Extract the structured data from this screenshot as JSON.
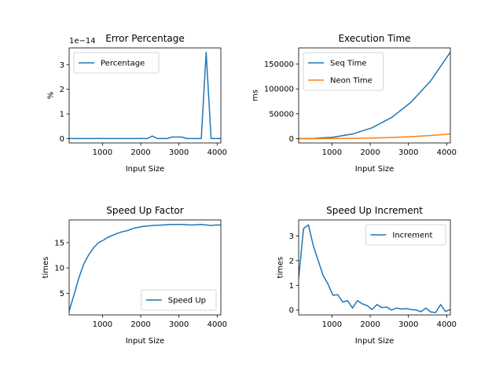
{
  "chart_data": [
    {
      "id": "error",
      "type": "line",
      "title": "Error Percentage",
      "xlabel": "Input Size",
      "ylabel": "%",
      "y_offset_text": "1e−14",
      "xlim": [
        128,
        4096
      ],
      "ylim": [
        -0.18,
        3.68
      ],
      "xticks": [
        1000,
        2000,
        3000,
        4000
      ],
      "yticks": [
        0,
        1,
        2,
        3
      ],
      "legend_position": "upper left",
      "series": [
        {
          "name": "Percentage",
          "color": "#1f77b4",
          "x": [
            128,
            2176,
            2304,
            2432,
            2688,
            2816,
            3072,
            3200,
            3584,
            3712,
            3840,
            4096
          ],
          "y": [
            0,
            0,
            0.1,
            0,
            0,
            0.06,
            0.06,
            0,
            0,
            3.5,
            0,
            0
          ]
        }
      ]
    },
    {
      "id": "exec",
      "type": "line",
      "title": "Execution Time",
      "xlabel": "Input Size",
      "ylabel": "ms",
      "xlim": [
        128,
        4096
      ],
      "ylim": [
        -8700,
        182500
      ],
      "xticks": [
        1000,
        2000,
        3000,
        4000
      ],
      "yticks": [
        0,
        50000,
        100000,
        150000
      ],
      "legend_position": "upper left",
      "series": [
        {
          "name": "Seq Time",
          "color": "#1f77b4",
          "x": [
            128,
            512,
            1024,
            1536,
            2048,
            2560,
            3072,
            3584,
            4096
          ],
          "y": [
            5,
            340,
            2700,
            9200,
            21800,
            42500,
            73500,
            116500,
            174000
          ]
        },
        {
          "name": "Neon Time",
          "color": "#ff7f0e",
          "x": [
            128,
            512,
            1024,
            1536,
            2048,
            2560,
            3072,
            3584,
            4096
          ],
          "y": [
            3,
            60,
            200,
            550,
            1200,
            2300,
            4000,
            6300,
            9400
          ]
        }
      ]
    },
    {
      "id": "speedup",
      "type": "line",
      "title": "Speed Up Factor",
      "xlabel": "Input Size",
      "ylabel": "times",
      "xlim": [
        128,
        4096
      ],
      "ylim": [
        0.7,
        19.5
      ],
      "xticks": [
        1000,
        2000,
        3000,
        4000
      ],
      "yticks": [
        5,
        10,
        15
      ],
      "legend_position": "lower right",
      "series": [
        {
          "name": "Speed Up",
          "color": "#1f77b4",
          "x": [
            128,
            256,
            384,
            512,
            640,
            768,
            896,
            1024,
            1152,
            1280,
            1408,
            1536,
            1664,
            1792,
            1920,
            2048,
            2304,
            2560,
            2816,
            3072,
            3328,
            3584,
            3840,
            3968,
            4096
          ],
          "y": [
            1.5,
            4.7,
            8.1,
            10.8,
            12.6,
            14.0,
            15.0,
            15.5,
            16.1,
            16.5,
            16.9,
            17.2,
            17.4,
            17.8,
            18.0,
            18.2,
            18.4,
            18.5,
            18.6,
            18.6,
            18.5,
            18.6,
            18.4,
            18.5,
            18.5
          ]
        }
      ]
    },
    {
      "id": "increment",
      "type": "line",
      "title": "Speed Up Increment",
      "xlabel": "Input Size",
      "ylabel": "times",
      "xlim": [
        128,
        4096
      ],
      "ylim": [
        -0.2,
        3.65
      ],
      "xticks": [
        1000,
        2000,
        3000,
        4000
      ],
      "yticks": [
        0,
        1,
        2,
        3
      ],
      "legend_position": "upper right",
      "series": [
        {
          "name": "Increment",
          "color": "#1f77b4",
          "x": [
            128,
            256,
            384,
            512,
            640,
            768,
            896,
            1024,
            1152,
            1280,
            1408,
            1536,
            1664,
            1792,
            1920,
            2048,
            2176,
            2304,
            2432,
            2560,
            2688,
            2816,
            2944,
            3072,
            3200,
            3328,
            3456,
            3584,
            3712,
            3840,
            3968,
            4096
          ],
          "y": [
            1.3,
            3.3,
            3.45,
            2.6,
            2.0,
            1.4,
            1.05,
            0.6,
            0.62,
            0.32,
            0.38,
            0.08,
            0.38,
            0.25,
            0.18,
            0.02,
            0.22,
            0.1,
            0.12,
            0.0,
            0.08,
            0.04,
            0.06,
            0.02,
            0.0,
            -0.07,
            0.08,
            -0.08,
            -0.1,
            0.22,
            -0.06,
            0.02
          ]
        }
      ]
    }
  ]
}
